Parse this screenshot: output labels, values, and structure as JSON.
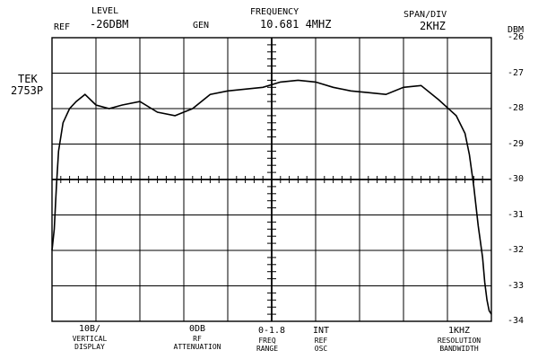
{
  "header": {
    "ref_label": "REF",
    "level_label": "LEVEL",
    "level_value": "-26DBM",
    "gen_label": "GEN",
    "frequency_label": "FREQUENCY",
    "frequency_value": "10.681 4MHZ",
    "span_label": "SPAN/DIV",
    "span_value": "2KHZ"
  },
  "instrument": {
    "brand": "TEK",
    "model": "2753P"
  },
  "footer": {
    "vertical_value": "10B/",
    "vertical_label_1": "VERTICAL",
    "vertical_label_2": "DISPLAY",
    "rf_value": "0DB",
    "rf_label_1": "RF",
    "rf_label_2": "ATTENUATION",
    "freq_range_value": "0-1.8",
    "freq_range_label_1": "FREQ",
    "freq_range_label_2": "RANGE",
    "osc_value": "INT",
    "osc_label_1": "REF",
    "osc_label_2": "OSC",
    "rbw_value": "1KHZ",
    "rbw_label_1": "RESOLUTION",
    "rbw_label_2": "BANDWIDTH"
  },
  "chart_data": {
    "type": "line",
    "ylabel": "DBM",
    "ylim": [
      -34,
      -26
    ],
    "xlim": [
      0,
      10
    ],
    "yticks": [
      "-26",
      "-27",
      "-28",
      "-29",
      "-30",
      "-31",
      "-32",
      "-33",
      "-34"
    ],
    "grid": true,
    "series": [
      {
        "x": [
          0.0,
          0.05,
          0.1,
          0.15,
          0.25,
          0.4,
          0.55,
          0.75,
          1.0,
          1.3,
          1.6,
          2.0,
          2.4,
          2.8,
          3.2,
          3.6,
          4.0,
          4.4,
          4.8,
          5.2,
          5.6,
          6.0,
          6.4,
          6.8,
          7.2,
          7.6,
          8.0,
          8.4,
          8.8,
          9.2,
          9.4,
          9.5,
          9.6,
          9.7,
          9.8,
          9.85,
          9.9,
          9.95,
          10.0
        ],
        "y": [
          -32.0,
          -31.4,
          -30.2,
          -29.2,
          -28.4,
          -28.0,
          -27.8,
          -27.6,
          -27.9,
          -28.0,
          -27.9,
          -27.8,
          -28.1,
          -28.2,
          -28.0,
          -27.6,
          -27.5,
          -27.45,
          -27.4,
          -27.25,
          -27.2,
          -27.25,
          -27.4,
          -27.5,
          -27.55,
          -27.6,
          -27.4,
          -27.35,
          -27.75,
          -28.2,
          -28.7,
          -29.3,
          -30.2,
          -31.3,
          -32.2,
          -32.9,
          -33.4,
          -33.7,
          -33.8
        ]
      }
    ]
  }
}
